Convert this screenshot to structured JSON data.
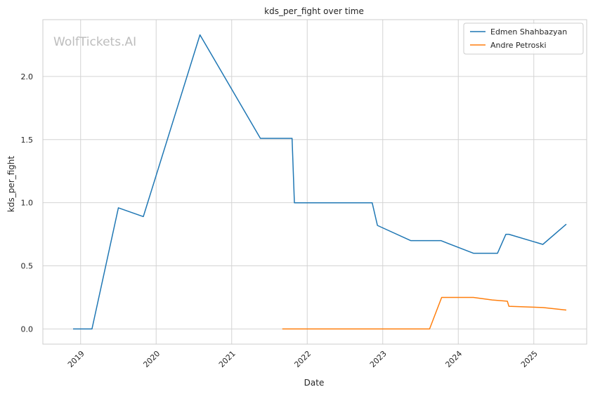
{
  "chart_data": {
    "type": "line",
    "title": "kds_per_fight over time",
    "xlabel": "Date",
    "ylabel": "kds_per_fight",
    "watermark": "WolfTickets.AI",
    "x_ticks": [
      2019,
      2020,
      2021,
      2022,
      2023,
      2024,
      2025
    ],
    "y_ticks": [
      0.0,
      0.5,
      1.0,
      1.5,
      2.0
    ],
    "y_tick_labels": [
      "0.0",
      "0.5",
      "1.0",
      "1.5",
      "2.0"
    ],
    "xlim": [
      2018.5,
      2025.7
    ],
    "ylim": [
      -0.12,
      2.45
    ],
    "grid": true,
    "legend_position": "top-right",
    "series": [
      {
        "name": "Edmen Shahbazyan",
        "color": "#1f77b4",
        "x": [
          2018.9,
          2019.15,
          2019.5,
          2019.83,
          2020.58,
          2021.38,
          2021.8,
          2021.83,
          2022.86,
          2022.93,
          2023.37,
          2023.77,
          2024.2,
          2024.52,
          2024.63,
          2024.67,
          2025.12,
          2025.43
        ],
        "y": [
          0.0,
          0.0,
          0.96,
          0.89,
          2.33,
          1.51,
          1.51,
          1.0,
          1.0,
          0.82,
          0.7,
          0.7,
          0.6,
          0.6,
          0.75,
          0.75,
          0.67,
          0.83
        ]
      },
      {
        "name": "Andre Petroski",
        "color": "#ff7f0e",
        "x": [
          2021.67,
          2023.62,
          2023.78,
          2024.2,
          2024.45,
          2024.65,
          2024.67,
          2025.12,
          2025.43
        ],
        "y": [
          0.0,
          0.0,
          0.25,
          0.25,
          0.23,
          0.22,
          0.18,
          0.17,
          0.15
        ]
      }
    ]
  }
}
